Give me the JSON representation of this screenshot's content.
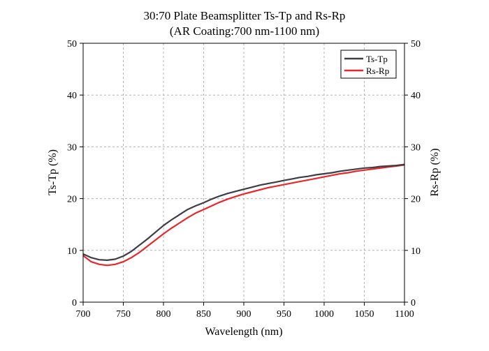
{
  "chart_data": {
    "type": "line",
    "title": "30:70 Plate Beamsplitter Ts-Tp and Rs-Rp",
    "subtitle": "(AR Coating:700 nm-1100 nm)",
    "xlabel": "Wavelength (nm)",
    "ylabel": "Ts-Tp (%)",
    "ylabel_right": "Rs-Rp (%)",
    "xlim": [
      700,
      1100
    ],
    "ylim": [
      0,
      50
    ],
    "x_ticks": [
      "700",
      "750",
      "800",
      "850",
      "900",
      "950",
      "1000",
      "1050",
      "1100"
    ],
    "y_ticks": [
      "0",
      "10",
      "20",
      "30",
      "40",
      "50"
    ],
    "grid": true,
    "legend_position": "top-right",
    "colors": {
      "Ts-Tp": "#3d3d45",
      "Rs-Rp": "#e8282b"
    },
    "series": [
      {
        "name": "Ts-Tp",
        "x": [
          700,
          710,
          720,
          730,
          740,
          750,
          760,
          770,
          780,
          790,
          800,
          810,
          820,
          830,
          840,
          850,
          860,
          870,
          880,
          890,
          900,
          910,
          920,
          930,
          940,
          950,
          960,
          970,
          980,
          990,
          1000,
          1010,
          1020,
          1030,
          1040,
          1050,
          1060,
          1070,
          1080,
          1090,
          1100
        ],
        "values": [
          9.3,
          8.6,
          8.2,
          8.1,
          8.3,
          8.9,
          9.8,
          11.0,
          12.2,
          13.5,
          14.8,
          15.9,
          16.9,
          17.9,
          18.6,
          19.2,
          19.9,
          20.5,
          21.0,
          21.4,
          21.8,
          22.2,
          22.6,
          22.9,
          23.2,
          23.5,
          23.8,
          24.1,
          24.3,
          24.6,
          24.8,
          25.0,
          25.3,
          25.5,
          25.7,
          25.9,
          26.0,
          26.2,
          26.3,
          26.4,
          26.6
        ]
      },
      {
        "name": "Rs-Rp",
        "x": [
          700,
          710,
          720,
          730,
          740,
          750,
          760,
          770,
          780,
          790,
          800,
          810,
          820,
          830,
          840,
          850,
          860,
          870,
          880,
          890,
          900,
          910,
          920,
          930,
          940,
          950,
          960,
          970,
          980,
          990,
          1000,
          1010,
          1020,
          1030,
          1040,
          1050,
          1060,
          1070,
          1080,
          1090,
          1100
        ],
        "values": [
          9.0,
          7.8,
          7.3,
          7.1,
          7.3,
          7.8,
          8.6,
          9.6,
          10.8,
          12.0,
          13.2,
          14.3,
          15.3,
          16.3,
          17.2,
          17.9,
          18.6,
          19.3,
          19.9,
          20.4,
          20.9,
          21.3,
          21.7,
          22.1,
          22.4,
          22.7,
          23.0,
          23.3,
          23.6,
          23.9,
          24.2,
          24.5,
          24.8,
          25.0,
          25.3,
          25.5,
          25.7,
          25.9,
          26.1,
          26.3,
          26.5
        ]
      }
    ]
  }
}
